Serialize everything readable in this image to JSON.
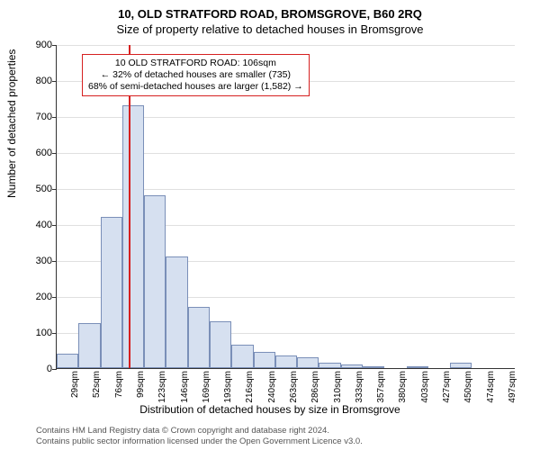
{
  "title_line1": "10, OLD STRATFORD ROAD, BROMSGROVE, B60 2RQ",
  "title_line2": "Size of property relative to detached houses in Bromsgrove",
  "ylabel": "Number of detached properties",
  "xlabel": "Distribution of detached houses by size in Bromsgrove",
  "credits_line1": "Contains HM Land Registry data © Crown copyright and database right 2024.",
  "credits_line2": "Contains public sector information licensed under the Open Government Licence v3.0.",
  "chart": {
    "type": "histogram",
    "background_color": "#ffffff",
    "grid_color": "#e0e0e0",
    "axis_color": "#333333",
    "bar_fill": "#d6e0f0",
    "bar_border": "#7a8fb8",
    "marker_color": "#d62020",
    "ylim": [
      0,
      900
    ],
    "ytick_step": 100,
    "x_bin_start": 29,
    "x_bin_width": 23.4,
    "x_bin_count": 21,
    "x_unit": "sqm",
    "values": [
      40,
      125,
      420,
      730,
      480,
      310,
      170,
      130,
      65,
      45,
      35,
      30,
      15,
      10,
      5,
      0,
      5,
      0,
      15,
      0,
      0
    ],
    "marker_x_value": 106,
    "title_fontsize": 13,
    "label_fontsize": 12,
    "tick_fontsize": 11,
    "xtick_fontsize": 10
  },
  "annotation": {
    "line1": "10 OLD STRATFORD ROAD: 106sqm",
    "line2": "← 32% of detached houses are smaller (735)",
    "line3": "68% of semi-detached houses are larger (1,582) →",
    "border_color": "#d62020"
  }
}
